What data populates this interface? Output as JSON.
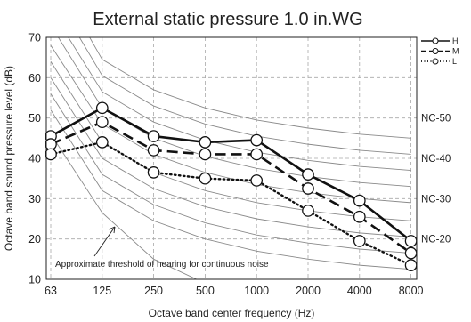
{
  "chart_data": {
    "type": "line",
    "title": "External static pressure 1.0 in.WG",
    "xlabel": "Octave band center frequency (Hz)",
    "ylabel": "Octave band sound pressure level (dB)",
    "categories": [
      "63",
      "125",
      "250",
      "500",
      "1000",
      "2000",
      "4000",
      "8000"
    ],
    "ylim": [
      10,
      70
    ],
    "yticks": [
      10,
      20,
      30,
      40,
      50,
      60,
      70
    ],
    "grid": true,
    "legend_position": "top-right",
    "series": [
      {
        "name": "H",
        "style": "solid",
        "values": [
          45.5,
          52.5,
          45.5,
          44.0,
          44.5,
          36.0,
          29.5,
          19.5
        ]
      },
      {
        "name": "M",
        "style": "dashed",
        "values": [
          43.5,
          49.0,
          42.0,
          41.0,
          41.0,
          32.5,
          25.5,
          16.5
        ]
      },
      {
        "name": "L",
        "style": "dotted",
        "values": [
          41.0,
          44.0,
          36.5,
          35.0,
          34.5,
          27.0,
          19.5,
          13.5
        ]
      }
    ],
    "nc_labels": [
      {
        "label": "NC-50",
        "level": 50
      },
      {
        "label": "NC-40",
        "level": 40
      },
      {
        "label": "NC-30",
        "level": 30
      },
      {
        "label": "NC-20",
        "level": 20
      }
    ],
    "nc_curves": [
      [
        87.0,
        64.5,
        57.0,
        52.5,
        49.5,
        47.5,
        46.0,
        45.0
      ],
      [
        82.0,
        60.5,
        53.0,
        48.5,
        45.5,
        43.5,
        42.0,
        41.0
      ],
      [
        77.0,
        56.5,
        49.0,
        44.5,
        41.5,
        39.5,
        38.0,
        37.0
      ],
      [
        73.0,
        52.5,
        45.0,
        40.5,
        37.5,
        35.5,
        34.0,
        33.0
      ],
      [
        68.0,
        48.5,
        41.0,
        36.5,
        33.5,
        31.5,
        30.0,
        29.0
      ],
      [
        64.0,
        44.0,
        36.5,
        32.0,
        29.0,
        27.0,
        25.5,
        24.5
      ],
      [
        60.0,
        40.0,
        32.5,
        28.0,
        25.0,
        23.0,
        21.5,
        20.5
      ],
      [
        56.0,
        36.0,
        28.5,
        24.0,
        21.0,
        19.0,
        17.5,
        16.5
      ],
      [
        52.0,
        32.0,
        24.5,
        20.0,
        17.0,
        15.0,
        13.5,
        12.5
      ]
    ],
    "threshold_curve": [
      46.0,
      26.5,
      15.0,
      9.0,
      6.0,
      5.0,
      4.0,
      3.5
    ],
    "annotation": "Approximate threshold of hearing for continuous noise",
    "colors": {
      "H": "#111111",
      "M": "#111111",
      "L": "#111111",
      "nc": "#8a8a8a",
      "grid": "#a8a8a8",
      "marker_fill": "#ffffff"
    }
  }
}
